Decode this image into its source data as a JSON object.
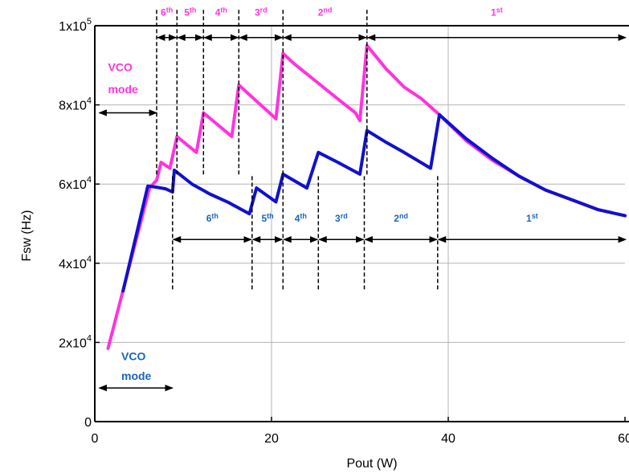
{
  "chart_data": {
    "type": "line",
    "xlabel": "Pout (W)",
    "ylabel": "Fsw (Hz)",
    "xlim": [
      0,
      60
    ],
    "ylim": [
      0,
      100000
    ],
    "grid": true,
    "x_ticks": [
      {
        "value": 0,
        "label": "0"
      },
      {
        "value": 20,
        "label": "20"
      },
      {
        "value": 40,
        "label": "40"
      },
      {
        "value": 60,
        "label": "60"
      }
    ],
    "y_ticks": [
      {
        "value": 0,
        "base": "0",
        "exp": ""
      },
      {
        "value": 20000,
        "base": "2x10",
        "exp": "4"
      },
      {
        "value": 40000,
        "base": "4x10",
        "exp": "4"
      },
      {
        "value": 60000,
        "base": "6x10",
        "exp": "4"
      },
      {
        "value": 80000,
        "base": "8x10",
        "exp": "4"
      },
      {
        "value": 100000,
        "base": "1x10",
        "exp": "5"
      }
    ],
    "series": [
      {
        "color": "#ff33dd",
        "points": [
          [
            1.5,
            18500
          ],
          [
            6.2,
            59000
          ],
          [
            7.0,
            61000
          ],
          [
            7.5,
            65500
          ],
          [
            8.5,
            64000
          ],
          [
            9.3,
            72000
          ],
          [
            11.5,
            68000
          ],
          [
            12.3,
            78000
          ],
          [
            15.5,
            72000
          ],
          [
            16.3,
            85000
          ],
          [
            20.5,
            76500
          ],
          [
            21.3,
            93000
          ],
          [
            22.5,
            90500
          ],
          [
            25.0,
            86000
          ],
          [
            27.5,
            81500
          ],
          [
            29.5,
            78000
          ],
          [
            30.0,
            76000
          ],
          [
            30.8,
            95000
          ],
          [
            33.0,
            89000
          ],
          [
            35.0,
            84500
          ],
          [
            37.0,
            81500
          ],
          [
            39.0,
            77500
          ],
          [
            42.0,
            71000
          ],
          [
            45.0,
            66000
          ],
          [
            48.0,
            62000
          ],
          [
            51.0,
            58500
          ],
          [
            54.0,
            56000
          ],
          [
            57.0,
            53500
          ],
          [
            60.0,
            52000
          ]
        ]
      },
      {
        "color": "#1111cc",
        "points": [
          [
            3.2,
            33000
          ],
          [
            6.0,
            59500
          ],
          [
            7.0,
            59200
          ],
          [
            8.0,
            58800
          ],
          [
            8.8,
            58000
          ],
          [
            9.0,
            63500
          ],
          [
            11.0,
            60000
          ],
          [
            13.0,
            57500
          ],
          [
            15.0,
            55500
          ],
          [
            17.5,
            52500
          ],
          [
            18.3,
            59000
          ],
          [
            20.5,
            55500
          ],
          [
            21.3,
            62500
          ],
          [
            24.0,
            59000
          ],
          [
            25.3,
            68000
          ],
          [
            27.5,
            65500
          ],
          [
            30.0,
            62500
          ],
          [
            30.8,
            73500
          ],
          [
            33.0,
            70500
          ],
          [
            35.0,
            68000
          ],
          [
            38.0,
            64000
          ],
          [
            39.0,
            77500
          ],
          [
            42.0,
            71500
          ],
          [
            45.0,
            66500
          ],
          [
            48.0,
            62000
          ],
          [
            51.0,
            58500
          ],
          [
            54.0,
            56000
          ],
          [
            57.0,
            53500
          ],
          [
            60.0,
            52000
          ]
        ]
      }
    ],
    "pink_bands": {
      "color": "#ff33dd",
      "y": 97000,
      "label_y": 102500,
      "bounds": [
        7,
        9.3,
        12.3,
        16.3,
        21.3,
        30.8,
        61
      ],
      "labels": [
        {
          "base": "6",
          "sup": "th"
        },
        {
          "base": "5",
          "sup": "th"
        },
        {
          "base": "4",
          "sup": "th"
        },
        {
          "base": "3",
          "sup": "rd"
        },
        {
          "base": "2",
          "sup": "nd"
        },
        {
          "base": "1",
          "sup": "st"
        }
      ],
      "dashed_x": [
        7,
        9.3,
        12.3,
        16.3,
        21.3,
        30.8
      ],
      "dashed_from": 104000,
      "dashed_to": 62000,
      "vco": {
        "line1": "VCO",
        "line2": "mode",
        "arrow_from": 0.5,
        "arrow_to": 7,
        "arrow_y": 78000,
        "text_x": 1.5,
        "text_y1": 88500,
        "text_y2": 83000
      }
    },
    "blue_bands": {
      "color": "#1a66bb",
      "y": 46000,
      "label_y": 50500,
      "bounds": [
        8.8,
        17.8,
        21.3,
        25.3,
        30.5,
        38.8,
        61
      ],
      "labels": [
        {
          "base": "6",
          "sup": "th"
        },
        {
          "base": "5",
          "sup": "th"
        },
        {
          "base": "4",
          "sup": "th"
        },
        {
          "base": "3",
          "sup": "rd"
        },
        {
          "base": "2",
          "sup": "nd"
        },
        {
          "base": "1",
          "sup": "st"
        }
      ],
      "dashed_x": [
        8.8,
        17.8,
        21.3,
        25.3,
        30.5,
        38.8
      ],
      "dashed_from": 62000,
      "dashed_to": 33000,
      "vco": {
        "line1": "VCO",
        "line2": "mode",
        "arrow_from": 0.5,
        "arrow_to": 8.8,
        "arrow_y": 8500,
        "text_x": 3.0,
        "text_y1": 15500,
        "text_y2": 10500
      }
    }
  }
}
